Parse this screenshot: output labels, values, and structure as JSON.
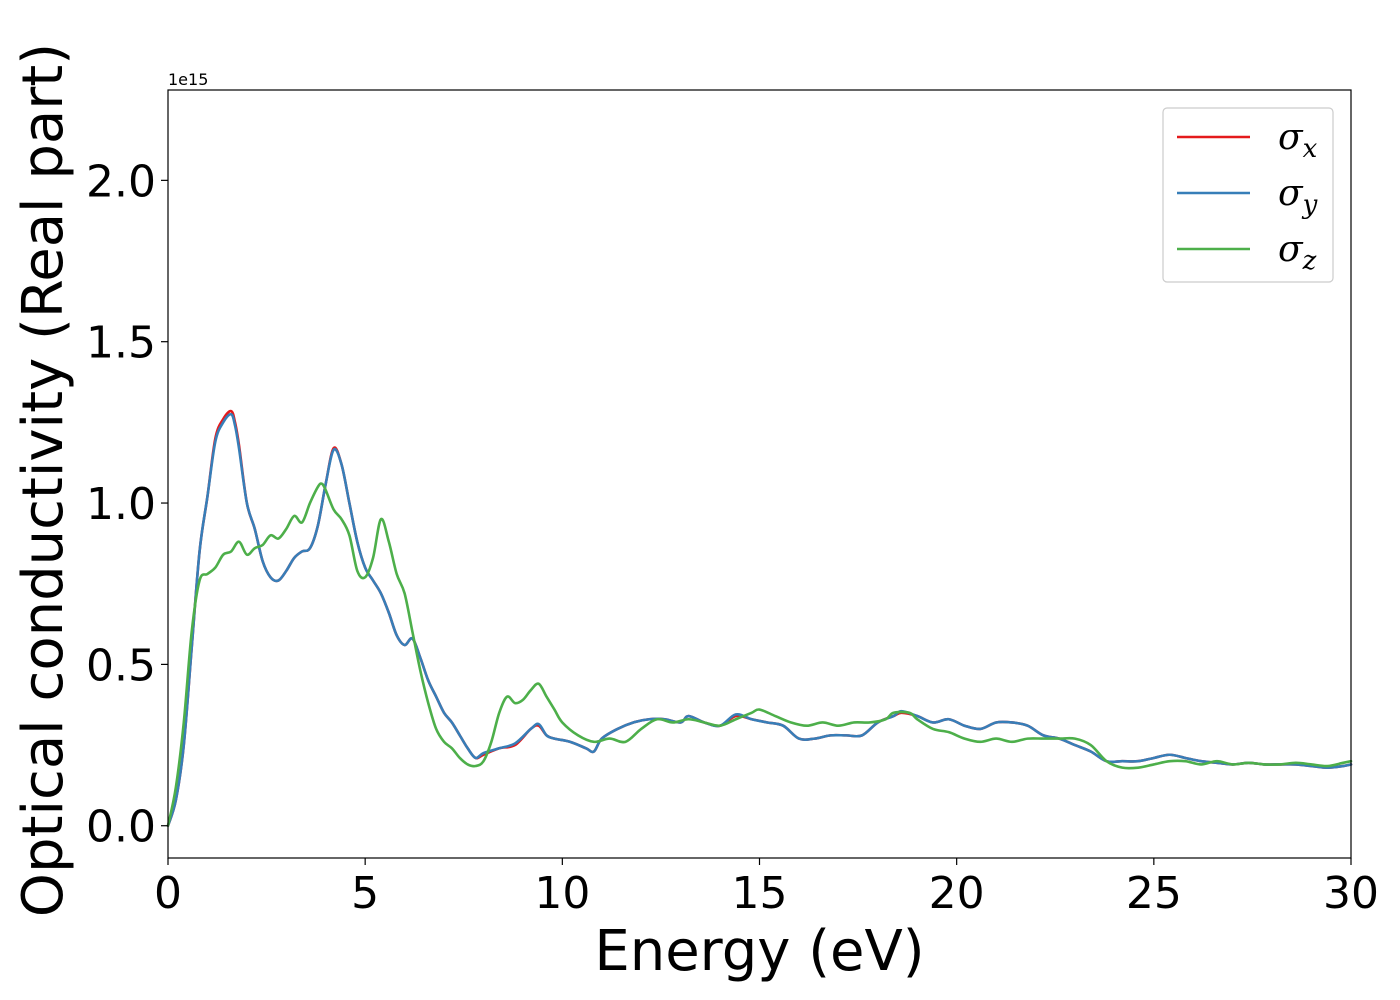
{
  "chart_data": {
    "type": "line",
    "xlabel": "Energy (eV)",
    "ylabel": "Optical conductivity (Real part)",
    "y_offset_label": "1e15",
    "xlim": [
      0,
      30
    ],
    "ylim": [
      -0.1,
      2.28
    ],
    "y_units": "1e15",
    "xticks": [
      0,
      5,
      10,
      15,
      20,
      25,
      30
    ],
    "xtick_labels": [
      "0",
      "5",
      "10",
      "15",
      "20",
      "25",
      "30"
    ],
    "yticks": [
      0.0,
      0.5,
      1.0,
      1.5,
      2.0
    ],
    "ytick_labels": [
      "0.0",
      "0.5",
      "1.0",
      "1.5",
      "2.0"
    ],
    "grid": false,
    "legend_position": "top-right",
    "colors": {
      "x": "#e41a1c",
      "y": "#377eb8",
      "z": "#4daf4a"
    },
    "series": [
      {
        "name": "σx",
        "base": "σ",
        "sub": "x",
        "color": "#e41a1c",
        "x": [
          0,
          0.2,
          0.4,
          0.6,
          0.8,
          1.0,
          1.2,
          1.4,
          1.6,
          1.7,
          1.8,
          2.0,
          2.2,
          2.4,
          2.6,
          2.8,
          3.0,
          3.2,
          3.4,
          3.6,
          3.8,
          4.0,
          4.2,
          4.4,
          4.6,
          4.8,
          5.0,
          5.2,
          5.4,
          5.6,
          5.8,
          6.0,
          6.2,
          6.4,
          6.6,
          6.8,
          7.0,
          7.2,
          7.4,
          7.6,
          7.8,
          8.0,
          8.4,
          8.8,
          9.2,
          9.4,
          9.6,
          9.8,
          10.2,
          10.6,
          10.8,
          11.0,
          11.4,
          11.8,
          12.2,
          12.6,
          13.0,
          13.2,
          13.6,
          14.0,
          14.4,
          14.8,
          15.2,
          15.6,
          16.0,
          16.4,
          16.8,
          17.2,
          17.6,
          18.0,
          18.4,
          18.6,
          19.0,
          19.4,
          19.8,
          20.2,
          20.6,
          21.0,
          21.4,
          21.8,
          22.2,
          22.6,
          23.0,
          23.4,
          23.8,
          24.2,
          24.6,
          25.0,
          25.4,
          25.8,
          26.2,
          26.6,
          27.0,
          27.4,
          27.8,
          28.2,
          28.6,
          29.0,
          29.4,
          29.8,
          30.0
        ],
        "y": [
          0.0,
          0.08,
          0.25,
          0.55,
          0.85,
          1.02,
          1.2,
          1.26,
          1.285,
          1.25,
          1.18,
          1.0,
          0.92,
          0.82,
          0.77,
          0.76,
          0.79,
          0.83,
          0.85,
          0.86,
          0.93,
          1.06,
          1.17,
          1.12,
          1.0,
          0.88,
          0.8,
          0.76,
          0.72,
          0.66,
          0.59,
          0.56,
          0.58,
          0.52,
          0.45,
          0.4,
          0.35,
          0.32,
          0.28,
          0.24,
          0.21,
          0.22,
          0.24,
          0.25,
          0.3,
          0.31,
          0.28,
          0.27,
          0.26,
          0.24,
          0.23,
          0.27,
          0.3,
          0.32,
          0.33,
          0.33,
          0.32,
          0.34,
          0.32,
          0.31,
          0.34,
          0.33,
          0.32,
          0.31,
          0.27,
          0.27,
          0.28,
          0.28,
          0.28,
          0.32,
          0.34,
          0.35,
          0.34,
          0.32,
          0.33,
          0.31,
          0.3,
          0.32,
          0.32,
          0.31,
          0.28,
          0.27,
          0.25,
          0.23,
          0.2,
          0.2,
          0.2,
          0.21,
          0.22,
          0.21,
          0.2,
          0.195,
          0.19,
          0.195,
          0.19,
          0.19,
          0.19,
          0.185,
          0.18,
          0.185,
          0.19
        ]
      },
      {
        "name": "σy",
        "base": "σ",
        "sub": "y",
        "color": "#377eb8",
        "x": [
          0,
          0.2,
          0.4,
          0.6,
          0.8,
          1.0,
          1.2,
          1.4,
          1.6,
          1.7,
          1.8,
          2.0,
          2.2,
          2.4,
          2.6,
          2.8,
          3.0,
          3.2,
          3.4,
          3.6,
          3.8,
          4.0,
          4.2,
          4.4,
          4.6,
          4.8,
          5.0,
          5.2,
          5.4,
          5.6,
          5.8,
          6.0,
          6.2,
          6.4,
          6.6,
          6.8,
          7.0,
          7.2,
          7.4,
          7.6,
          7.8,
          8.0,
          8.4,
          8.8,
          9.2,
          9.4,
          9.6,
          9.8,
          10.2,
          10.6,
          10.8,
          11.0,
          11.4,
          11.8,
          12.2,
          12.6,
          13.0,
          13.2,
          13.6,
          14.0,
          14.4,
          14.8,
          15.2,
          15.6,
          16.0,
          16.4,
          16.8,
          17.2,
          17.6,
          18.0,
          18.4,
          18.6,
          19.0,
          19.4,
          19.8,
          20.2,
          20.6,
          21.0,
          21.4,
          21.8,
          22.2,
          22.6,
          23.0,
          23.4,
          23.8,
          24.2,
          24.6,
          25.0,
          25.4,
          25.8,
          26.2,
          26.6,
          27.0,
          27.4,
          27.8,
          28.2,
          28.6,
          29.0,
          29.4,
          29.8,
          30.0
        ],
        "y": [
          0.0,
          0.08,
          0.25,
          0.55,
          0.85,
          1.02,
          1.19,
          1.25,
          1.275,
          1.24,
          1.17,
          1.0,
          0.92,
          0.82,
          0.77,
          0.76,
          0.79,
          0.83,
          0.85,
          0.86,
          0.93,
          1.06,
          1.165,
          1.12,
          1.0,
          0.88,
          0.8,
          0.76,
          0.72,
          0.66,
          0.59,
          0.56,
          0.58,
          0.52,
          0.45,
          0.4,
          0.35,
          0.32,
          0.28,
          0.24,
          0.21,
          0.225,
          0.24,
          0.255,
          0.3,
          0.315,
          0.28,
          0.27,
          0.26,
          0.24,
          0.23,
          0.27,
          0.3,
          0.32,
          0.33,
          0.33,
          0.32,
          0.34,
          0.32,
          0.31,
          0.345,
          0.33,
          0.32,
          0.31,
          0.27,
          0.27,
          0.28,
          0.28,
          0.28,
          0.32,
          0.34,
          0.355,
          0.34,
          0.32,
          0.33,
          0.31,
          0.3,
          0.32,
          0.32,
          0.31,
          0.28,
          0.27,
          0.25,
          0.23,
          0.2,
          0.2,
          0.2,
          0.21,
          0.22,
          0.21,
          0.2,
          0.195,
          0.19,
          0.195,
          0.19,
          0.19,
          0.19,
          0.185,
          0.18,
          0.185,
          0.19
        ]
      },
      {
        "name": "σz",
        "base": "σ",
        "sub": "z",
        "color": "#4daf4a",
        "x": [
          0,
          0.2,
          0.4,
          0.6,
          0.8,
          1.0,
          1.2,
          1.4,
          1.6,
          1.8,
          2.0,
          2.2,
          2.4,
          2.6,
          2.8,
          3.0,
          3.2,
          3.4,
          3.6,
          3.8,
          3.9,
          4.0,
          4.2,
          4.4,
          4.6,
          4.8,
          5.0,
          5.2,
          5.4,
          5.6,
          5.8,
          6.0,
          6.2,
          6.4,
          6.6,
          6.8,
          7.0,
          7.2,
          7.4,
          7.6,
          7.8,
          8.0,
          8.2,
          8.4,
          8.6,
          8.8,
          9.0,
          9.2,
          9.4,
          9.6,
          9.8,
          10.0,
          10.4,
          10.8,
          11.2,
          11.6,
          12.0,
          12.4,
          12.8,
          13.2,
          13.6,
          14.0,
          14.4,
          14.8,
          15.0,
          15.4,
          15.8,
          16.2,
          16.6,
          17.0,
          17.4,
          17.8,
          18.2,
          18.4,
          18.8,
          19.0,
          19.4,
          19.8,
          20.2,
          20.6,
          21.0,
          21.4,
          21.8,
          22.2,
          22.6,
          23.0,
          23.4,
          23.8,
          24.2,
          24.6,
          25.0,
          25.4,
          25.8,
          26.2,
          26.6,
          27.0,
          27.4,
          27.8,
          28.2,
          28.6,
          29.0,
          29.4,
          29.8,
          30.0
        ],
        "y": [
          0.0,
          0.12,
          0.32,
          0.6,
          0.76,
          0.78,
          0.8,
          0.84,
          0.85,
          0.88,
          0.84,
          0.86,
          0.87,
          0.9,
          0.89,
          0.92,
          0.96,
          0.94,
          1.0,
          1.05,
          1.06,
          1.04,
          0.98,
          0.95,
          0.9,
          0.79,
          0.77,
          0.83,
          0.95,
          0.88,
          0.78,
          0.72,
          0.6,
          0.48,
          0.38,
          0.3,
          0.26,
          0.24,
          0.21,
          0.19,
          0.185,
          0.2,
          0.26,
          0.35,
          0.4,
          0.38,
          0.39,
          0.42,
          0.44,
          0.4,
          0.36,
          0.32,
          0.28,
          0.26,
          0.27,
          0.26,
          0.3,
          0.33,
          0.32,
          0.33,
          0.32,
          0.31,
          0.33,
          0.35,
          0.36,
          0.34,
          0.32,
          0.31,
          0.32,
          0.31,
          0.32,
          0.32,
          0.33,
          0.35,
          0.35,
          0.33,
          0.3,
          0.29,
          0.27,
          0.26,
          0.27,
          0.26,
          0.27,
          0.27,
          0.27,
          0.27,
          0.25,
          0.2,
          0.18,
          0.18,
          0.19,
          0.2,
          0.2,
          0.19,
          0.2,
          0.19,
          0.195,
          0.19,
          0.19,
          0.195,
          0.19,
          0.185,
          0.195,
          0.2
        ]
      }
    ]
  }
}
